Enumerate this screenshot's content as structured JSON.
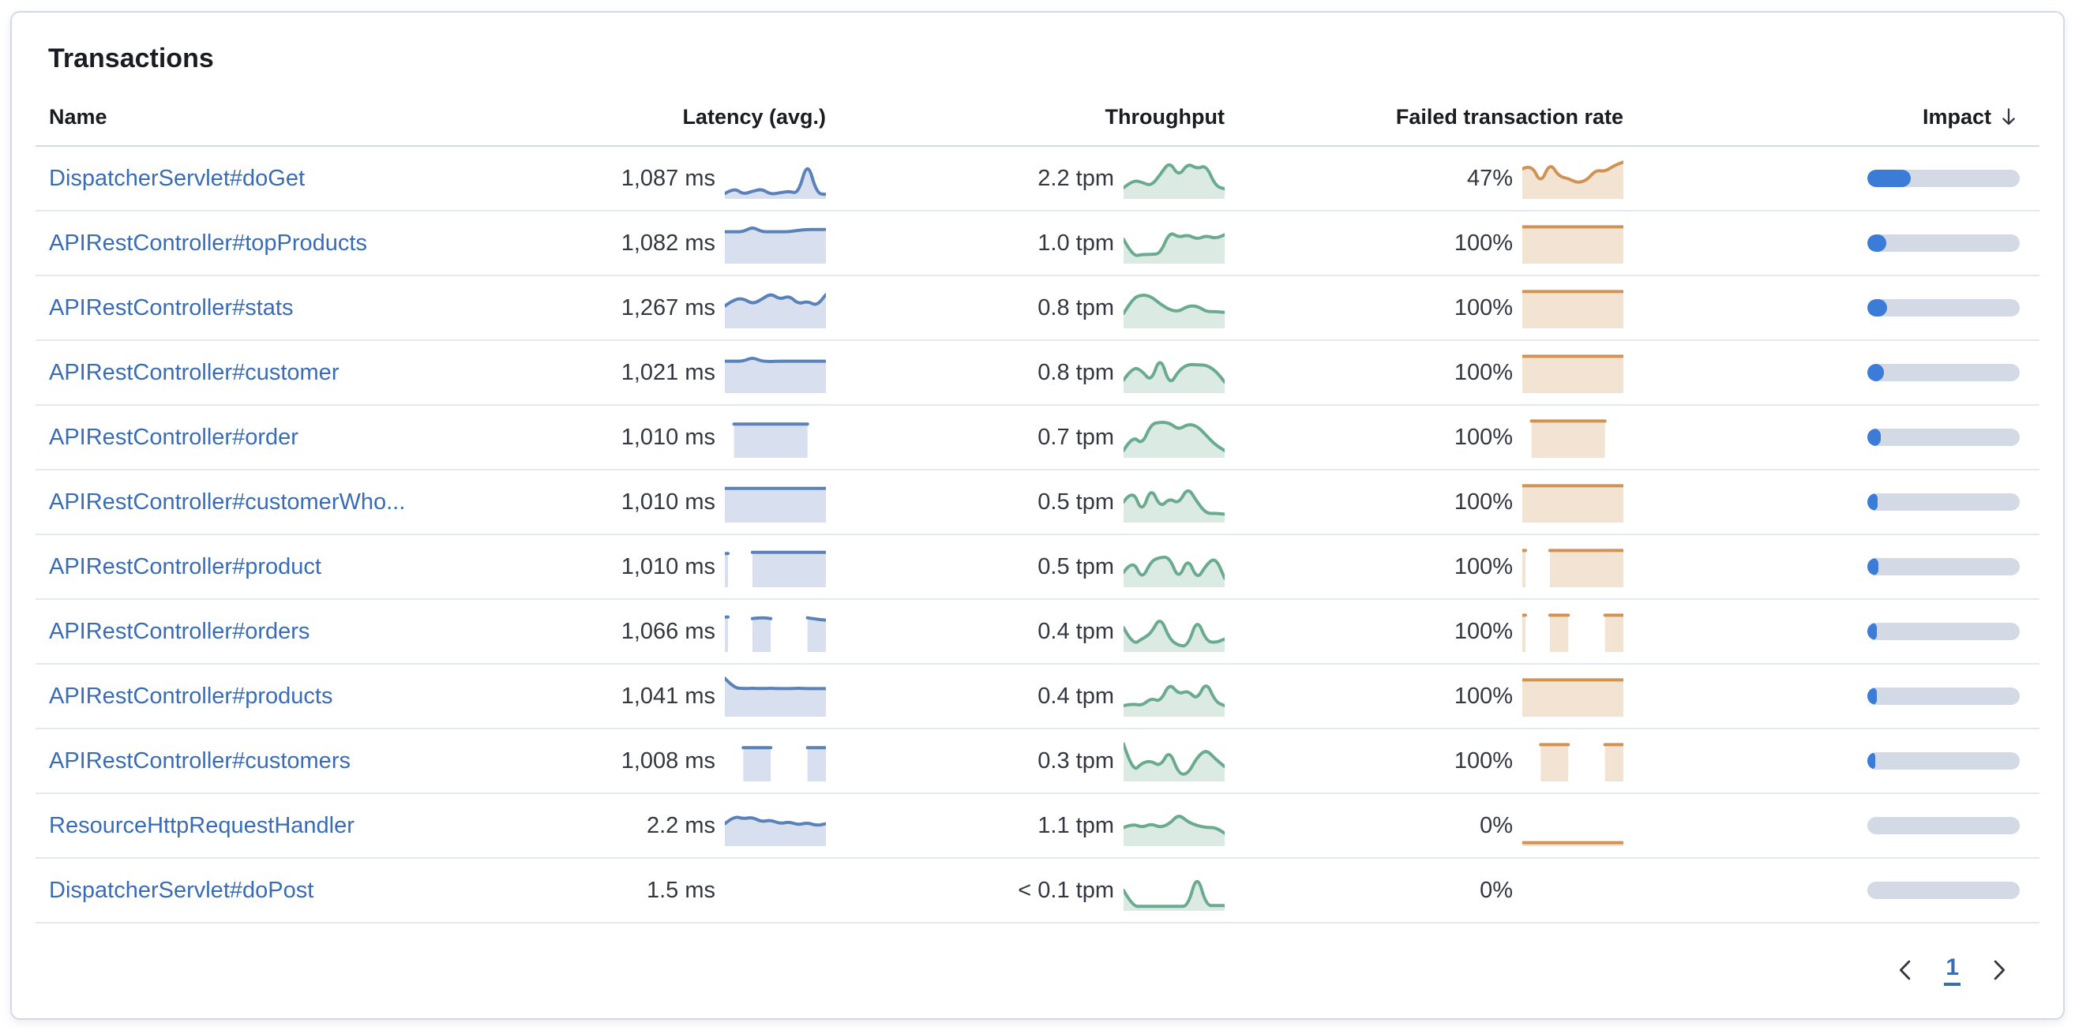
{
  "panel": {
    "title": "Transactions"
  },
  "colors": {
    "link_blue": "#3a6cb4",
    "latency_line": "#5a82b9",
    "latency_fill": "#d8e0f0",
    "throughput_line": "#6aab8f",
    "throughput_fill": "#dbeae2",
    "failed_line": "#cf9354",
    "failed_fill": "#f2e3d2",
    "impact_fill": "#3b7cd9",
    "impact_track": "#d3d9e5",
    "text_dark": "#343741",
    "icon_dark": "#343741"
  },
  "table": {
    "columns": [
      {
        "label": "Name"
      },
      {
        "label": "Latency (avg.)"
      },
      {
        "label": "Throughput"
      },
      {
        "label": "Failed transaction rate"
      },
      {
        "label": "Impact",
        "sort": "desc"
      }
    ],
    "rows": [
      {
        "name": "DispatcherServlet#doGet",
        "latency": "1,087 ms",
        "throughput": "2.2 tpm",
        "failed_rate": "47%",
        "impact_pct": 28.5,
        "latency_spark": [
          0.1,
          0.25,
          0.08,
          0.16,
          0.22,
          0.08,
          0.12,
          0.16,
          0.1,
          0.97,
          0.1,
          0.08
        ],
        "throughput_spark": [
          0.25,
          0.45,
          0.4,
          0.3,
          0.6,
          0.95,
          0.55,
          0.9,
          0.75,
          0.85,
          0.3,
          0.22
        ],
        "failed_spark": [
          0.75,
          0.88,
          0.35,
          0.92,
          0.55,
          0.5,
          0.38,
          0.45,
          0.72,
          0.68,
          0.84,
          0.93
        ]
      },
      {
        "name": "APIRestController#topProducts",
        "latency": "1,082 ms",
        "throughput": "1.0 tpm",
        "failed_rate": "100%",
        "impact_pct": 12.5,
        "latency_spark": [
          0.8,
          0.8,
          0.8,
          0.93,
          0.8,
          0.8,
          0.8,
          0.8,
          0.84,
          0.86,
          0.86,
          0.86
        ],
        "throughput_spark": [
          0.6,
          0.15,
          0.2,
          0.2,
          0.22,
          0.8,
          0.65,
          0.72,
          0.6,
          0.7,
          0.62,
          0.72
        ],
        "failed_spark": [
          0.93,
          0.93,
          0.93,
          0.93,
          0.93,
          0.93,
          0.93,
          0.93,
          0.93,
          0.93,
          0.93,
          0.93
        ]
      },
      {
        "name": "APIRestController#stats",
        "latency": "1,267 ms",
        "throughput": "0.8 tpm",
        "failed_rate": "100%",
        "impact_pct": 13,
        "latency_spark": [
          0.55,
          0.72,
          0.75,
          0.6,
          0.72,
          0.88,
          0.72,
          0.82,
          0.6,
          0.68,
          0.55,
          0.85
        ],
        "throughput_spark": [
          0.35,
          0.75,
          0.85,
          0.8,
          0.6,
          0.45,
          0.4,
          0.55,
          0.55,
          0.4,
          0.4,
          0.38
        ],
        "failed_spark": [
          0.93,
          0.93,
          0.93,
          0.93,
          0.93,
          0.93,
          0.93,
          0.93,
          0.93,
          0.93,
          0.93,
          0.93
        ]
      },
      {
        "name": "APIRestController#customer",
        "latency": "1,021 ms",
        "throughput": "0.8 tpm",
        "failed_rate": "100%",
        "impact_pct": 11,
        "latency_spark": [
          0.8,
          0.8,
          0.8,
          0.9,
          0.8,
          0.79,
          0.8,
          0.8,
          0.8,
          0.8,
          0.8,
          0.8
        ],
        "throughput_spark": [
          0.3,
          0.65,
          0.55,
          0.25,
          0.95,
          0.15,
          0.55,
          0.72,
          0.7,
          0.7,
          0.55,
          0.25
        ],
        "failed_spark": [
          0.93,
          0.93,
          0.93,
          0.93,
          0.93,
          0.93,
          0.93,
          0.93,
          0.93,
          0.93,
          0.93,
          0.93
        ]
      },
      {
        "name": "APIRestController#order",
        "latency": "1,010 ms",
        "throughput": "0.7 tpm",
        "failed_rate": "100%",
        "impact_pct": 9,
        "latency_spark": [
          null,
          0.85,
          0.85,
          0.85,
          0.85,
          0.85,
          0.85,
          0.85,
          0.85,
          0.85,
          null,
          null
        ],
        "throughput_spark": [
          0.15,
          0.55,
          0.3,
          0.85,
          0.9,
          0.88,
          0.7,
          0.85,
          0.8,
          0.55,
          0.3,
          0.15
        ],
        "failed_spark": [
          null,
          0.93,
          0.93,
          0.93,
          0.93,
          0.93,
          0.93,
          0.93,
          0.93,
          0.93,
          null,
          null
        ]
      },
      {
        "name": "APIRestController#customerWho...",
        "latency": "1,010 ms",
        "throughput": "0.5 tpm",
        "failed_rate": "100%",
        "impact_pct": 6.5,
        "latency_spark": [
          0.86,
          0.86,
          0.86,
          0.86,
          0.86,
          0.86,
          0.86,
          0.86,
          0.86,
          0.86,
          0.86,
          0.86
        ],
        "throughput_spark": [
          0.5,
          0.85,
          0.2,
          0.9,
          0.35,
          0.6,
          0.45,
          0.9,
          0.5,
          0.2,
          0.2,
          0.18
        ],
        "failed_spark": [
          0.93,
          0.93,
          0.93,
          0.93,
          0.93,
          0.93,
          0.93,
          0.93,
          0.93,
          0.93,
          0.93,
          0.93
        ]
      },
      {
        "name": "APIRestController#product",
        "latency": "1,010 ms",
        "throughput": "0.5 tpm",
        "failed_rate": "100%",
        "impact_pct": 7.5,
        "latency_spark": [
          0.85,
          null,
          null,
          0.88,
          0.88,
          0.88,
          0.88,
          0.88,
          0.88,
          0.88,
          0.88,
          0.88
        ],
        "throughput_spark": [
          0.35,
          0.7,
          0.15,
          0.65,
          0.75,
          0.75,
          0.15,
          0.75,
          0.15,
          0.55,
          0.75,
          0.2
        ],
        "failed_spark": [
          0.93,
          null,
          null,
          0.93,
          0.93,
          0.93,
          0.93,
          0.93,
          0.93,
          0.93,
          0.93,
          0.93
        ]
      },
      {
        "name": "APIRestController#orders",
        "latency": "1,066 ms",
        "throughput": "0.4 tpm",
        "failed_rate": "100%",
        "impact_pct": 6,
        "latency_spark": [
          0.88,
          null,
          null,
          0.84,
          0.87,
          0.84,
          null,
          null,
          null,
          0.86,
          0.82,
          0.8
        ],
        "throughput_spark": [
          0.6,
          0.15,
          0.3,
          0.45,
          0.9,
          0.3,
          0.12,
          0.12,
          0.85,
          0.25,
          0.2,
          0.3
        ],
        "failed_spark": [
          0.93,
          null,
          null,
          0.93,
          0.93,
          0.93,
          null,
          null,
          null,
          0.93,
          0.93,
          0.93
        ]
      },
      {
        "name": "APIRestController#products",
        "latency": "1,041 ms",
        "throughput": "0.4 tpm",
        "failed_rate": "100%",
        "impact_pct": 6,
        "latency_spark": [
          0.97,
          0.72,
          0.7,
          0.71,
          0.7,
          0.71,
          0.7,
          0.7,
          0.71,
          0.7,
          0.7,
          0.7
        ],
        "throughput_spark": [
          0.25,
          0.3,
          0.25,
          0.45,
          0.35,
          0.85,
          0.55,
          0.65,
          0.4,
          0.9,
          0.35,
          0.25
        ],
        "failed_spark": [
          0.93,
          0.93,
          0.93,
          0.93,
          0.93,
          0.93,
          0.93,
          0.93,
          0.93,
          0.93,
          0.93,
          0.93
        ]
      },
      {
        "name": "APIRestController#customers",
        "latency": "1,008 ms",
        "throughput": "0.3 tpm",
        "failed_rate": "100%",
        "impact_pct": 5,
        "latency_spark": [
          null,
          null,
          0.85,
          0.85,
          0.85,
          0.85,
          null,
          null,
          null,
          0.85,
          0.85,
          0.85
        ],
        "throughput_spark": [
          0.95,
          0.2,
          0.45,
          0.5,
          0.35,
          0.8,
          0.15,
          0.15,
          0.6,
          0.8,
          0.55,
          0.35
        ],
        "failed_spark": [
          null,
          null,
          0.93,
          0.93,
          0.93,
          0.93,
          null,
          null,
          null,
          0.93,
          0.93,
          0.93
        ]
      },
      {
        "name": "ResourceHttpRequestHandler",
        "latency": "2.2 ms",
        "throughput": "1.1 tpm",
        "failed_rate": "0%",
        "impact_pct": 0,
        "latency_spark": [
          0.55,
          0.75,
          0.68,
          0.72,
          0.6,
          0.65,
          0.55,
          0.6,
          0.52,
          0.58,
          0.5,
          0.55
        ],
        "throughput_spark": [
          0.45,
          0.55,
          0.45,
          0.55,
          0.45,
          0.55,
          0.8,
          0.6,
          0.5,
          0.45,
          0.45,
          0.3
        ],
        "failed_spark": [
          0.05,
          0.05,
          0.05,
          0.05,
          0.05,
          0.05,
          0.05,
          0.05,
          0.05,
          0.05,
          0.05,
          0.05
        ]
      },
      {
        "name": "DispatcherServlet#doPost",
        "latency": "1.5 ms",
        "throughput": "< 0.1 tpm",
        "failed_rate": "0%",
        "impact_pct": 0,
        "latency_spark": null,
        "throughput_spark": [
          0.5,
          0.08,
          0.08,
          0.08,
          0.08,
          0.08,
          0.08,
          0.08,
          0.95,
          0.1,
          0.1,
          0.1
        ],
        "failed_spark": null
      }
    ]
  },
  "pagination": {
    "current_page": "1"
  }
}
